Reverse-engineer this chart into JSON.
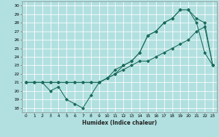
{
  "xlabel": "Humidex (Indice chaleur)",
  "ylabel": "",
  "background_color": "#b2e0e0",
  "grid_color": "#ffffff",
  "line_color": "#1a6b5a",
  "xlim": [
    -0.5,
    23.5
  ],
  "ylim": [
    17.5,
    30.5
  ],
  "xticks": [
    0,
    1,
    2,
    3,
    4,
    5,
    6,
    7,
    8,
    9,
    10,
    11,
    12,
    13,
    14,
    15,
    16,
    17,
    18,
    19,
    20,
    21,
    22,
    23
  ],
  "yticks": [
    18,
    19,
    20,
    21,
    22,
    23,
    24,
    25,
    26,
    27,
    28,
    29,
    30
  ],
  "line1_x": [
    0,
    1,
    2,
    3,
    4,
    5,
    6,
    7,
    8,
    9,
    10,
    11,
    12,
    13,
    14,
    15,
    16,
    17,
    18,
    19,
    20,
    21,
    22,
    23
  ],
  "line1_y": [
    21,
    21,
    21,
    21,
    21,
    21,
    21,
    21,
    21,
    21,
    21.5,
    22,
    22.5,
    23,
    23.5,
    23.5,
    24,
    24.5,
    25,
    25.5,
    26,
    27,
    27.5,
    23
  ],
  "line2_x": [
    0,
    1,
    2,
    3,
    4,
    5,
    6,
    7,
    8,
    9,
    10,
    11,
    12,
    13,
    14,
    15,
    16,
    17,
    18,
    19,
    20,
    21,
    22,
    23
  ],
  "line2_y": [
    21,
    21,
    21,
    20,
    20.5,
    19,
    18.5,
    18,
    19.5,
    21,
    21.5,
    22.5,
    23,
    23.5,
    24.5,
    26.5,
    27,
    28,
    28.5,
    29.5,
    29.5,
    28,
    24.5,
    23
  ],
  "line3_x": [
    0,
    1,
    2,
    3,
    4,
    5,
    6,
    7,
    8,
    9,
    10,
    11,
    12,
    13,
    14,
    15,
    16,
    17,
    18,
    19,
    20,
    21,
    22,
    23
  ],
  "line3_y": [
    21,
    21,
    21,
    21,
    21,
    21,
    21,
    21,
    21,
    21,
    21.5,
    22,
    23,
    23.5,
    24.5,
    26.5,
    27,
    28,
    28.5,
    29.5,
    29.5,
    28.5,
    28,
    23
  ],
  "tick_fontsize": 4.5,
  "xlabel_fontsize": 5.5,
  "marker_size": 1.8,
  "line_width": 0.8
}
